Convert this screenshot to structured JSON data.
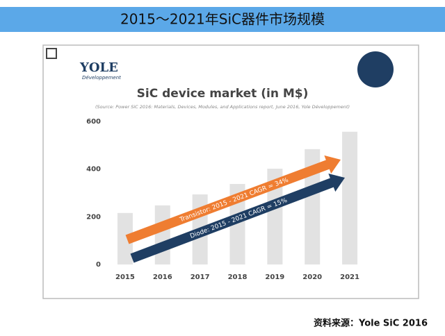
{
  "slide": {
    "title": "2015～2021年SiC器件市场规模",
    "source": "资料来源：Yole SiC 2016"
  },
  "logo": {
    "name": "YOLE",
    "tagline": "Développement"
  },
  "chart_data": {
    "type": "bar",
    "title": "SiC device market (in M$)",
    "subtitle": "(Source: Power SiC 2016: Materials, Devices, Modules, and Applications report, June 2016, Yole Développement)",
    "categories": [
      "2015",
      "2016",
      "2017",
      "2018",
      "2019",
      "2020",
      "2021"
    ],
    "values": [
      216,
      248,
      294,
      338,
      402,
      484,
      557
    ],
    "color": "#e2e2e2",
    "ylim": [
      0,
      600
    ],
    "yticks": [
      0,
      200,
      400,
      600
    ],
    "annotations": [
      {
        "text": "Transistor: 2015 - 2021 CAGR = 34%",
        "color": "#ef7d31"
      },
      {
        "text": "Diode: 2015 - 2021 CAGR = 15%",
        "color": "#1f3e63"
      }
    ]
  }
}
